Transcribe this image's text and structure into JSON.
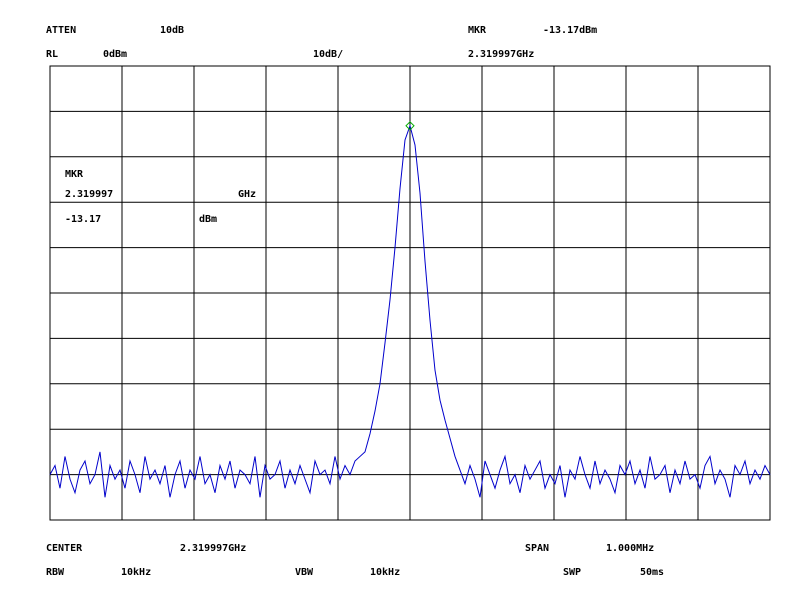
{
  "chart_data": {
    "type": "line",
    "xlim": [
      2.319497,
      2.320497
    ],
    "xticks": [
      2.319497,
      2.319597,
      2.319697,
      2.319797,
      2.319897,
      2.319997,
      2.320097,
      2.320197,
      2.320297,
      2.320397,
      2.320497
    ],
    "ylim": [
      -100,
      0
    ],
    "yticks": [
      -100,
      -90,
      -80,
      -70,
      -60,
      -50,
      -40,
      -30,
      -20,
      -10,
      0
    ],
    "grid": true,
    "series": [
      {
        "color": "#0000cc",
        "values": [
          -90,
          -88,
          -93,
          -86,
          -91,
          -94,
          -89,
          -87,
          -92,
          -90,
          -85,
          -95,
          -88,
          -91,
          -89,
          -93,
          -87,
          -90,
          -94,
          -86,
          -91,
          -89,
          -92,
          -88,
          -95,
          -90,
          -87,
          -93,
          -89,
          -91,
          -86,
          -92,
          -90,
          -94,
          -88,
          -91,
          -87,
          -93,
          -89,
          -90,
          -92,
          -86,
          -95,
          -88,
          -91,
          -90,
          -87,
          -93,
          -89,
          -92,
          -88,
          -91,
          -94,
          -87,
          -90,
          -89,
          -92,
          -86,
          -91,
          -88,
          -90,
          -87,
          -86,
          -85,
          -81,
          -76,
          -70,
          -61,
          -51.5,
          -40,
          -27,
          -16.3,
          -13.17,
          -17.4,
          -28,
          -43,
          -56,
          -67,
          -73.6,
          -78,
          -82,
          -86,
          -89,
          -92,
          -88,
          -91,
          -95,
          -87,
          -90,
          -93,
          -89,
          -86,
          -92,
          -90,
          -94,
          -88,
          -91,
          -89,
          -87,
          -93,
          -90,
          -92,
          -88,
          -95,
          -89,
          -91,
          -86,
          -90,
          -93,
          -87,
          -92,
          -89,
          -91,
          -94,
          -88,
          -90,
          -87,
          -92,
          -89,
          -93,
          -86,
          -91,
          -90,
          -88,
          -94,
          -89,
          -92,
          -87,
          -91,
          -90,
          -93,
          -88,
          -86,
          -92,
          -89,
          -91,
          -95,
          -88,
          -90,
          -87,
          -92,
          -89,
          -91,
          -88,
          -90
        ]
      }
    ],
    "marker": {
      "label": "MKR",
      "x": 2.319997,
      "y": -13.17,
      "x_unit": "GHz",
      "y_unit": "dBm",
      "color": "#00aa00"
    }
  },
  "header": {
    "atten_label": "ATTEN",
    "atten": "10dB",
    "mkr_label": "MKR",
    "mkr_value": "-13.17dBm",
    "rl_label": "RL",
    "rl": "0dBm",
    "scale": "10dB/",
    "mkr_freq": "2.319997GHz"
  },
  "footer": {
    "center_label": "CENTER",
    "center": "2.319997GHz",
    "span_label": "SPAN",
    "span": "1.000MHz",
    "rbw_label": "RBW",
    "rbw": "10kHz",
    "vbw_label": "VBW",
    "vbw": "10kHz",
    "swp_label": "SWP",
    "swp": "50ms"
  }
}
